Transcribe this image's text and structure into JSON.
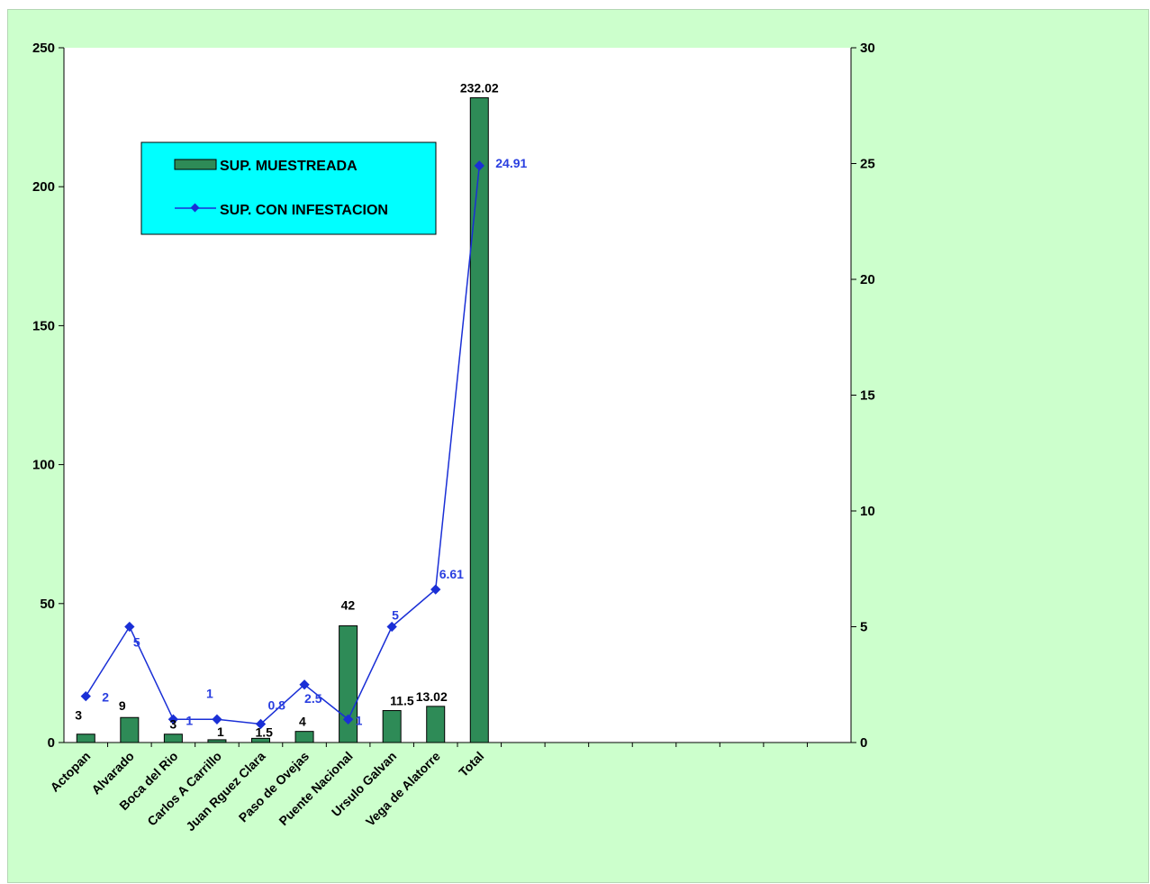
{
  "chart_data": {
    "type": "bar",
    "categories": [
      "Actopan",
      "Alvarado",
      "Boca del Rio",
      "Carlos A Carrillo",
      "Juan Rguez Clara",
      "Paso de Ovejas",
      "Puente Nacional",
      "Ursulo Galvan",
      "Vega de Alatorre",
      "Total"
    ],
    "series": [
      {
        "name": "SUP. MUESTREADA",
        "type": "bar",
        "axis": "left",
        "values": [
          3,
          9,
          3,
          1,
          1.5,
          4,
          42,
          11.5,
          13.02,
          232.02
        ],
        "labels": [
          "3",
          "9",
          "3",
          "1",
          "1.5",
          "4",
          "42",
          "11.5",
          "13.02",
          "232.02"
        ],
        "color": "#2e8b57"
      },
      {
        "name": "SUP. CON INFESTACION",
        "type": "line",
        "axis": "right",
        "values": [
          2,
          5,
          1,
          1,
          0.8,
          2.5,
          1,
          5,
          6.61,
          24.91
        ],
        "labels": [
          "2",
          "5",
          "1",
          "1",
          "0.8",
          "2.5",
          "1",
          "5",
          "6.61",
          "24.91"
        ],
        "color": "#1a2fd6"
      }
    ],
    "total_slots": 18,
    "left_axis": {
      "ylim": [
        0,
        250
      ],
      "ticks": [
        "0",
        "50",
        "100",
        "150",
        "200",
        "250"
      ]
    },
    "right_axis": {
      "ylim": [
        0,
        30
      ],
      "ticks": [
        "0",
        "5",
        "10",
        "15",
        "20",
        "25",
        "30"
      ]
    },
    "title": "",
    "xlabel": "",
    "ylabel": "",
    "grid": false,
    "legend_position": "top-left",
    "colors": {
      "background": "#ccffcc",
      "plot_background": "#ffffff",
      "legend_background": "#00ffff"
    }
  }
}
